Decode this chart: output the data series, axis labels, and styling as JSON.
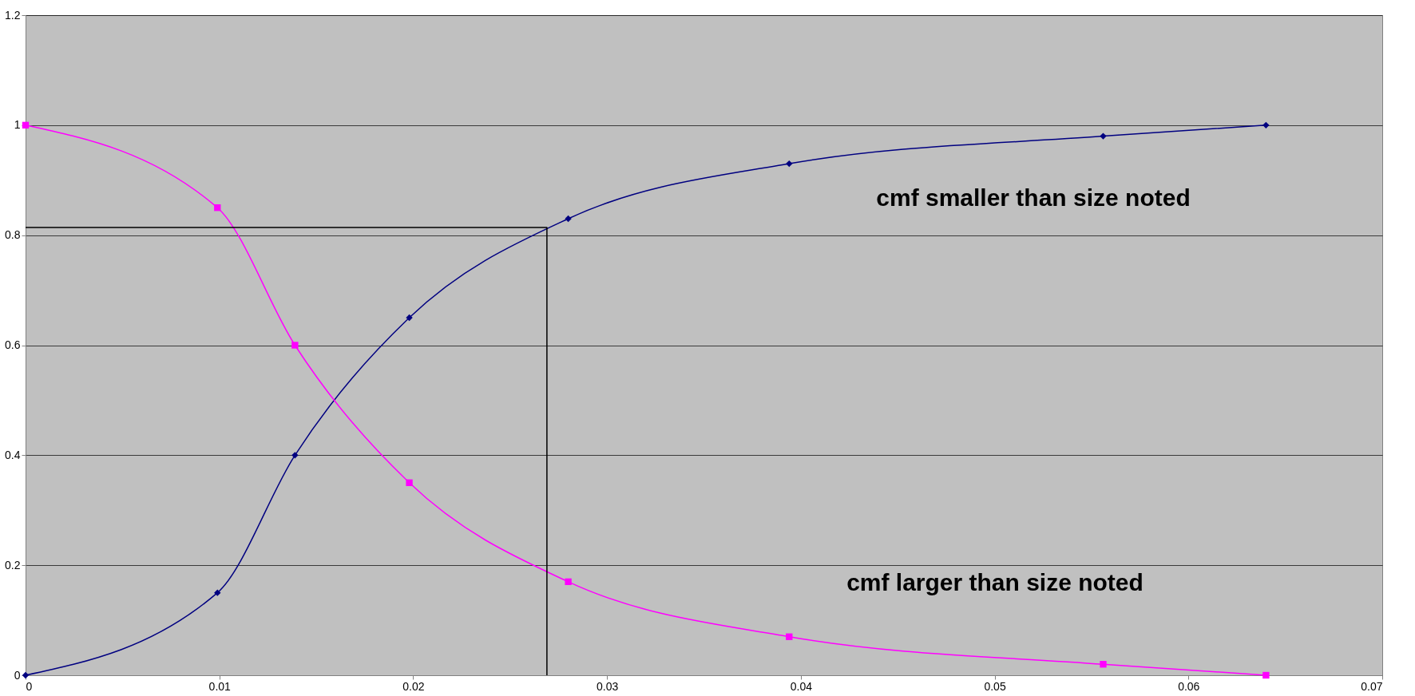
{
  "chart_data": {
    "type": "line",
    "xlim": [
      0,
      0.07
    ],
    "xticks": [
      0,
      0.01,
      0.02,
      0.03,
      0.04,
      0.05,
      0.06,
      0.07
    ],
    "ylim": [
      0,
      1.2
    ],
    "yticks": [
      0,
      0.2,
      0.4,
      0.6,
      0.8,
      1,
      1.2
    ],
    "grid": "y",
    "series": [
      {
        "color": "#000080",
        "marker": "diamond",
        "x": [
          0,
          0.0099,
          0.0139,
          0.0198,
          0.028,
          0.0394,
          0.0556,
          0.064
        ],
        "values": [
          0,
          0.15,
          0.4,
          0.65,
          0.83,
          0.93,
          0.98,
          1
        ]
      },
      {
        "color": "#ff00ff",
        "marker": "square",
        "x": [
          0,
          0.0099,
          0.0139,
          0.0198,
          0.028,
          0.0394,
          0.0556,
          0.064
        ],
        "values": [
          1,
          0.85,
          0.6,
          0.35,
          0.17,
          0.07,
          0.02,
          0
        ]
      },
      {
        "color": "#000000",
        "marker": "none",
        "x": [
          0,
          0.0269,
          0.0269
        ],
        "values": [
          0.814,
          0.814,
          0
        ]
      }
    ],
    "annotations": [
      "cmf smaller than size noted",
      "cmf larger than size noted"
    ]
  }
}
